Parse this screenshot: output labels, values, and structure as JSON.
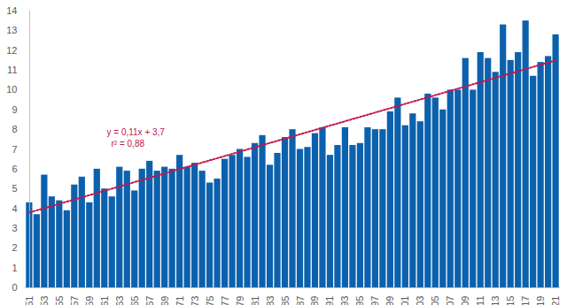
{
  "chart_data": {
    "type": "bar",
    "categories": [
      "51",
      null,
      "53",
      null,
      "55",
      null,
      "57",
      null,
      "59",
      null,
      "61",
      null,
      "63",
      null,
      "65",
      null,
      "67",
      null,
      "69",
      null,
      "71",
      null,
      "73",
      null,
      "75",
      null,
      "77",
      null,
      "79",
      null,
      "81",
      null,
      "83",
      null,
      "85",
      null,
      "87",
      null,
      "89",
      null,
      "91",
      null,
      "93",
      null,
      "95",
      null,
      "97",
      null,
      "99",
      null,
      "01",
      null,
      "03",
      null,
      "05",
      null,
      "07",
      null,
      "09",
      null,
      "11",
      null,
      "13",
      null,
      "15",
      null,
      "17",
      null,
      "19",
      null,
      "21"
    ],
    "values": [
      4.3,
      3.7,
      5.7,
      4.6,
      4.4,
      3.9,
      5.2,
      5.6,
      4.3,
      6.0,
      5.0,
      4.6,
      6.1,
      5.9,
      4.9,
      6.0,
      6.4,
      5.9,
      6.1,
      6.0,
      6.7,
      6.1,
      6.3,
      5.9,
      5.3,
      5.5,
      6.5,
      6.7,
      7.0,
      6.6,
      7.3,
      7.7,
      6.2,
      6.8,
      7.6,
      8.0,
      7.0,
      7.1,
      7.8,
      8.1,
      6.7,
      7.2,
      8.1,
      7.2,
      7.3,
      8.1,
      8.0,
      8.0,
      8.9,
      9.6,
      8.2,
      8.8,
      8.4,
      9.8,
      9.6,
      9.0,
      10.0,
      10.0,
      11.6,
      10.0,
      11.9,
      11.6,
      10.9,
      13.3,
      11.5,
      11.9,
      13.5,
      10.7,
      11.4,
      11.7,
      12.8
    ],
    "color": "#0c61ad",
    "ylim": [
      0,
      14
    ],
    "yticks": [
      0,
      1,
      2,
      3,
      4,
      5,
      6,
      7,
      8,
      9,
      10,
      11,
      12,
      13,
      14
    ],
    "grid": false,
    "trendline": {
      "slope": 0.11,
      "intercept": 3.7,
      "color": "#c0184e",
      "equation_label": "y = 0,11x + 3,7",
      "r2_label": "r² = 0,88"
    }
  }
}
